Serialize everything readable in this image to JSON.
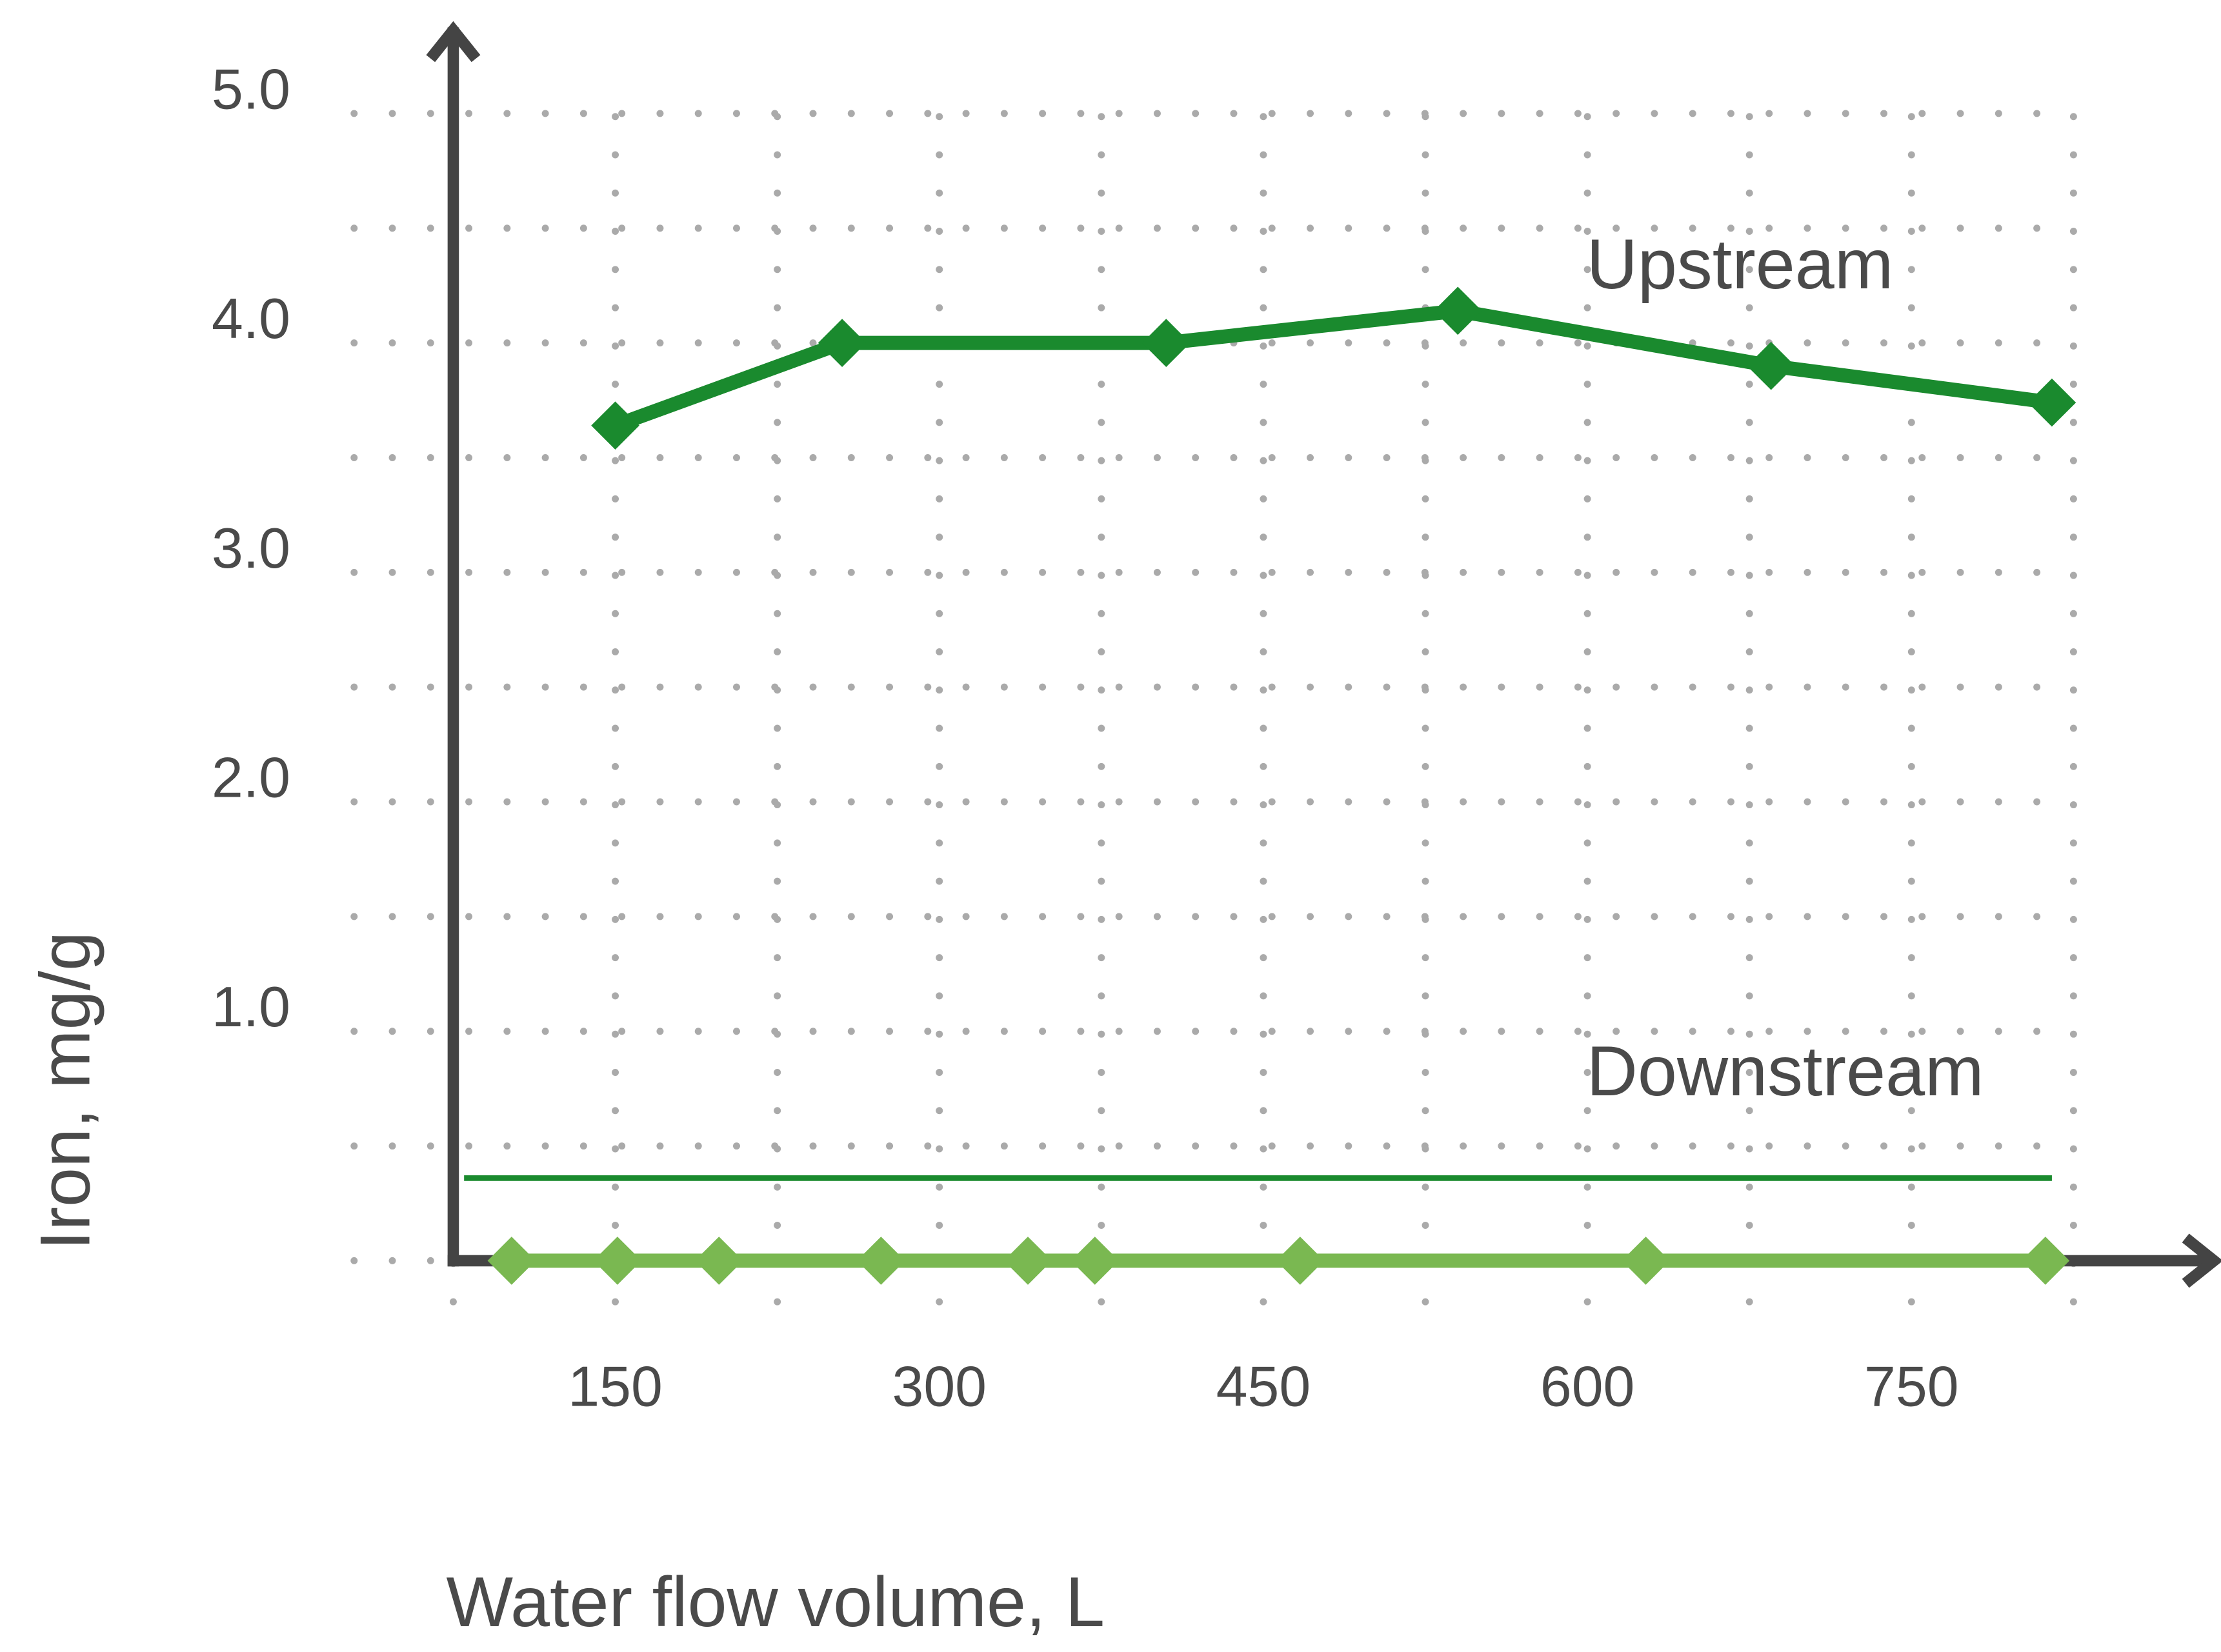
{
  "chart_data": {
    "type": "line",
    "x_label": "Water flow volume, L",
    "y_label": "Iron, mg/g",
    "xlim": [
      75,
      890
    ],
    "ylim": [
      0,
      5.4
    ],
    "xticks": [
      150,
      300,
      450,
      600,
      750
    ],
    "x_minor_grid": [
      75,
      225,
      375,
      525,
      675,
      825
    ],
    "yticks": [
      {
        "value": 1,
        "label": "1.0"
      },
      {
        "value": 2,
        "label": "2.0"
      },
      {
        "value": 3,
        "label": "3.0"
      },
      {
        "value": 4,
        "label": "4.0"
      },
      {
        "value": 5,
        "label": "5.0"
      }
    ],
    "y_minor_grid": [
      0,
      0.5,
      1.5,
      2.5,
      3.5,
      4.5
    ],
    "grid": true,
    "reference_line": {
      "value": 0.36,
      "color": "#1a8a2e",
      "x": [
        80,
        815
      ]
    },
    "series": [
      {
        "name": "Upstream",
        "color": "#1a8a2e",
        "x": [
          150,
          255,
          405,
          540,
          685,
          815
        ],
        "values": [
          3.64,
          4.0,
          4.0,
          4.14,
          3.9,
          3.74
        ]
      },
      {
        "name": "Downstream",
        "color": "#7ab851",
        "x": [
          102,
          151,
          198,
          273,
          341,
          372,
          467,
          627,
          812
        ],
        "values": [
          0,
          0,
          0,
          0,
          0,
          0,
          0,
          0,
          0
        ]
      }
    ]
  }
}
